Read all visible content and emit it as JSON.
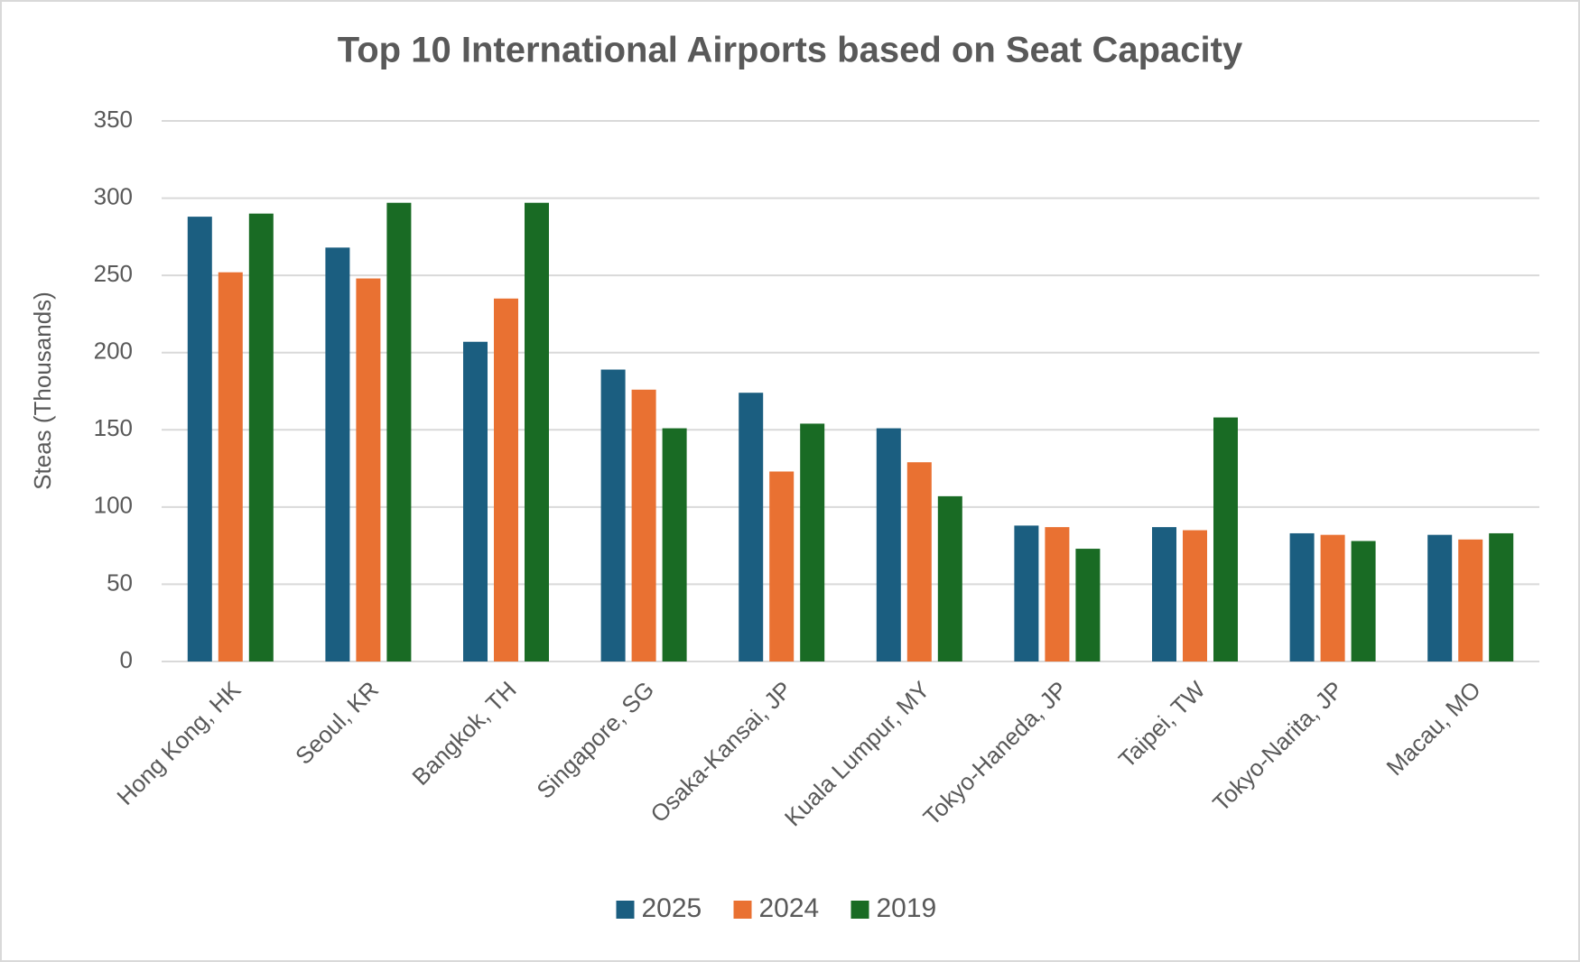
{
  "chart_data": {
    "type": "bar",
    "title": "Top 10 International Airports based on Seat Capacity",
    "y_label": "Steas (Thousands)",
    "categories": [
      "Hong Kong, HK",
      "Seoul, KR",
      "Bangkok, TH",
      "Singapore, SG",
      "Osaka-Kansai, JP",
      "Kuala Lumpur, MY",
      "Tokyo-Haneda, JP",
      "Taipei, TW",
      "Tokyo-Narita, JP",
      "Macau, MO"
    ],
    "series": [
      {
        "name": "2025",
        "color": "#1b5e80",
        "values": [
          288,
          268,
          207,
          189,
          174,
          151,
          88,
          87,
          83,
          82
        ]
      },
      {
        "name": "2024",
        "color": "#e97132",
        "values": [
          252,
          248,
          235,
          176,
          123,
          129,
          87,
          85,
          82,
          79
        ]
      },
      {
        "name": "2019",
        "color": "#196b24",
        "values": [
          290,
          297,
          297,
          151,
          154,
          107,
          73,
          158,
          78,
          83
        ]
      }
    ],
    "ylim": [
      0,
      350
    ],
    "yticks": [
      0,
      50,
      100,
      150,
      200,
      250,
      300,
      350
    ],
    "grid": true,
    "legend": "bottom"
  }
}
